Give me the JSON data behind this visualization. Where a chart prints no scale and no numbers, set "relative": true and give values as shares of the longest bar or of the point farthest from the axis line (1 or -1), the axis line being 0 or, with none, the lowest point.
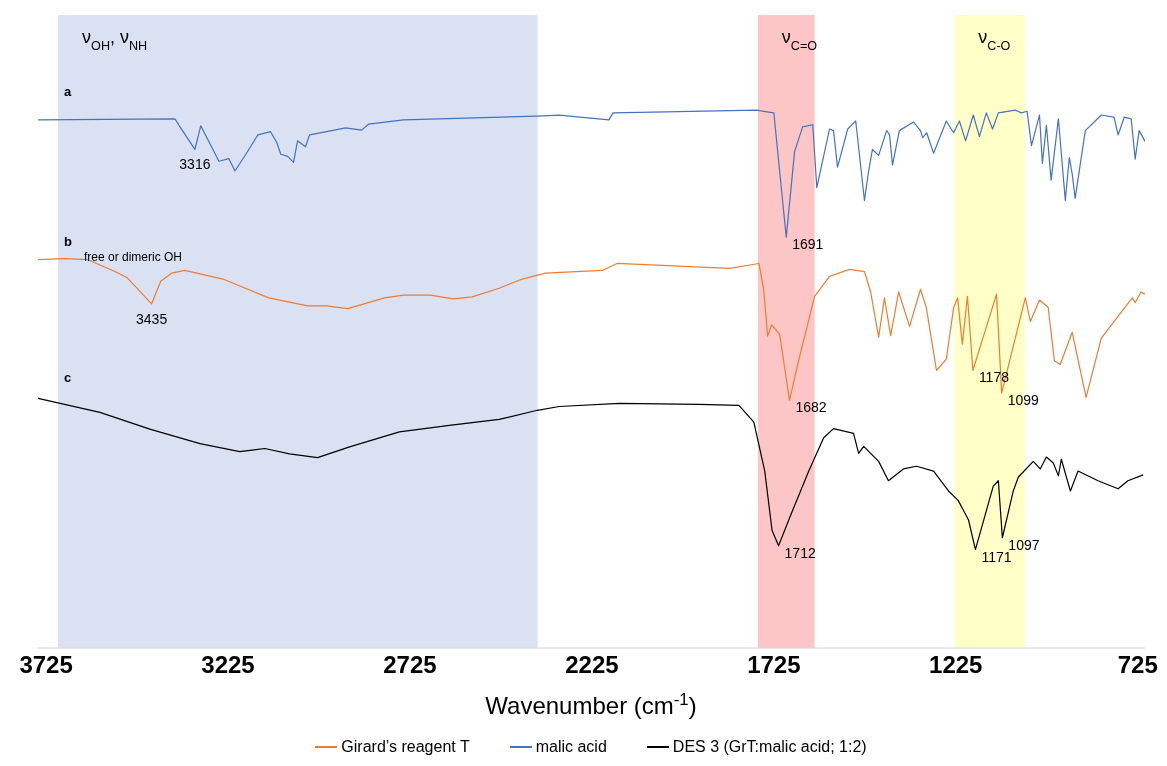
{
  "chart_data": {
    "type": "line",
    "relative": true,
    "xlabel": "Wavenumber (cm$^{-1}$)",
    "xlim": [
      3750,
      705
    ],
    "xticks": [
      3725,
      3225,
      2725,
      2225,
      1725,
      1225,
      725
    ],
    "legend": "bottom",
    "bands": [
      {
        "axis": "x",
        "from": 3692,
        "to": 2374,
        "label": "ν$_{OH}$, ν$_{NH}$",
        "color": "#d9e1f2"
      },
      {
        "axis": "x",
        "from": 1769,
        "to": 1613,
        "label": "ν$_{C=O}$",
        "color": "#fcc6c6"
      },
      {
        "axis": "x",
        "from": 1229,
        "to": 1035,
        "label": "ν$_{C-O}$",
        "color": "#ffffc8"
      }
    ],
    "annotations": [
      "a",
      "b",
      "c",
      "free or dimeric OH",
      {
        "text": "3316",
        "x": 3316,
        "y": 0.927
      },
      {
        "text": "1691",
        "x": 1691,
        "y": 0.764
      },
      {
        "text": "3435",
        "x": 3435,
        "y": 0.64
      },
      {
        "text": "1682",
        "x": 1682,
        "y": 0.461
      },
      {
        "text": "1178",
        "x": 1178,
        "y": 0.516
      },
      {
        "text": "1099",
        "x": 1099,
        "y": 0.474
      },
      {
        "text": "1712",
        "x": 1712,
        "y": 0.19
      },
      {
        "text": "1171",
        "x": 1171,
        "y": 0.183
      },
      {
        "text": "1097",
        "x": 1097,
        "y": 0.205
      }
    ],
    "series": [
      {
        "name": "Girard’s reagent T",
        "color": "#ed7d31",
        "x": [
          3747,
          3673,
          3610,
          3536,
          3503,
          3435,
          3410,
          3380,
          3344,
          3239,
          3113,
          3006,
          2954,
          2896,
          2795,
          2743,
          2669,
          2606,
          2554,
          2480,
          2416,
          2353,
          2197,
          2156,
          1846,
          1766,
          1753,
          1742,
          1731,
          1709,
          1682,
          1657,
          1613,
          1572,
          1517,
          1476,
          1459,
          1437,
          1421,
          1404,
          1382,
          1352,
          1322,
          1306,
          1278,
          1251,
          1231,
          1220,
          1207,
          1193,
          1178,
          1113,
          1099,
          1034,
          1020,
          995,
          971,
          954,
          938,
          905,
          867,
          825,
          740,
          732,
          716,
          705
        ],
        "values": [
          0.722,
          0.724,
          0.722,
          0.7,
          0.689,
          0.64,
          0.682,
          0.697,
          0.702,
          0.686,
          0.651,
          0.636,
          0.636,
          0.631,
          0.651,
          0.656,
          0.656,
          0.649,
          0.653,
          0.669,
          0.686,
          0.697,
          0.702,
          0.715,
          0.706,
          0.715,
          0.667,
          0.58,
          0.601,
          0.583,
          0.461,
          0.534,
          0.654,
          0.691,
          0.704,
          0.7,
          0.662,
          0.578,
          0.651,
          0.581,
          0.662,
          0.598,
          0.667,
          0.633,
          0.516,
          0.537,
          0.633,
          0.651,
          0.565,
          0.654,
          0.516,
          0.658,
          0.474,
          0.651,
          0.607,
          0.647,
          0.633,
          0.534,
          0.527,
          0.587,
          0.466,
          0.576,
          0.651,
          0.642,
          0.662,
          0.658
        ]
      },
      {
        "name": "malic acid",
        "color": "#4472c4",
        "x": [
          3747,
          3371,
          3357,
          3316,
          3300,
          3250,
          3223,
          3206,
          3176,
          3143,
          3108,
          3091,
          3080,
          3061,
          3045,
          3034,
          3012,
          3001,
          2954,
          2902,
          2858,
          2839,
          2743,
          2375,
          2315,
          2178,
          2167,
          1772,
          1725,
          1691,
          1668,
          1646,
          1618,
          1607,
          1572,
          1561,
          1550,
          1522,
          1500,
          1476,
          1465,
          1454,
          1437,
          1415,
          1407,
          1399,
          1380,
          1341,
          1322,
          1316,
          1305,
          1286,
          1251,
          1231,
          1215,
          1198,
          1177,
          1160,
          1141,
          1124,
          1108,
          1061,
          1045,
          1029,
          1017,
          995,
          987,
          976,
          963,
          943,
          924,
          913,
          905,
          897,
          869,
          825,
          790,
          779,
          762,
          743,
          732,
          721,
          705
        ],
        "values": [
          0.982,
          0.984,
          0.969,
          0.927,
          0.971,
          0.905,
          0.91,
          0.887,
          0.918,
          0.954,
          0.96,
          0.94,
          0.918,
          0.914,
          0.903,
          0.943,
          0.932,
          0.954,
          0.96,
          0.967,
          0.963,
          0.974,
          0.982,
          0.989,
          0.991,
          0.982,
          0.995,
          1.0,
          0.995,
          0.764,
          0.923,
          0.969,
          0.973,
          0.856,
          0.965,
          0.962,
          0.894,
          0.965,
          0.98,
          0.832,
          0.885,
          0.927,
          0.916,
          0.962,
          0.954,
          0.898,
          0.962,
          0.978,
          0.962,
          0.949,
          0.958,
          0.92,
          0.98,
          0.958,
          0.98,
          0.943,
          0.991,
          0.951,
          0.995,
          0.965,
          0.995,
          1.0,
          0.995,
          0.998,
          0.934,
          0.991,
          0.901,
          0.972,
          0.87,
          0.984,
          0.832,
          0.912,
          0.881,
          0.836,
          0.962,
          0.991,
          0.987,
          0.954,
          0.987,
          0.984,
          0.909,
          0.962,
          0.942
        ]
      },
      {
        "name": "DES 3 (GrT:malic acid; 1:2)",
        "color": "#000000",
        "x": [
          3747,
          3577,
          3440,
          3302,
          3193,
          3124,
          3056,
          2979,
          2891,
          2754,
          2617,
          2480,
          2375,
          2315,
          2150,
          1931,
          1821,
          1780,
          1750,
          1730,
          1712,
          1680,
          1629,
          1588,
          1561,
          1506,
          1492,
          1478,
          1437,
          1410,
          1369,
          1333,
          1286,
          1245,
          1218,
          1190,
          1171,
          1122,
          1108,
          1097,
          1067,
          1053,
          1012,
          993,
          976,
          957,
          943,
          935,
          910,
          889,
          834,
          779,
          752,
          710
        ],
        "values": [
          0.464,
          0.438,
          0.407,
          0.38,
          0.365,
          0.371,
          0.361,
          0.354,
          0.374,
          0.402,
          0.414,
          0.425,
          0.442,
          0.449,
          0.455,
          0.453,
          0.451,
          0.42,
          0.329,
          0.219,
          0.19,
          0.245,
          0.329,
          0.391,
          0.408,
          0.399,
          0.362,
          0.375,
          0.347,
          0.311,
          0.333,
          0.338,
          0.329,
          0.292,
          0.274,
          0.238,
          0.183,
          0.301,
          0.311,
          0.205,
          0.292,
          0.318,
          0.347,
          0.333,
          0.355,
          0.344,
          0.32,
          0.351,
          0.292,
          0.329,
          0.311,
          0.296,
          0.311,
          0.322
        ]
      }
    ]
  }
}
